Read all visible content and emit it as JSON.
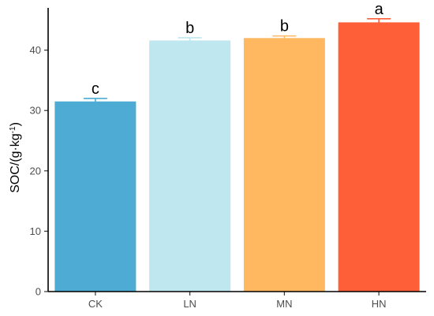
{
  "chart_data": {
    "type": "bar",
    "categories": [
      "CK",
      "LN",
      "MN",
      "HN"
    ],
    "values": [
      31.5,
      41.6,
      42.0,
      44.6
    ],
    "errors": [
      0.5,
      0.45,
      0.35,
      0.6
    ],
    "significance_labels": [
      "c",
      "b",
      "b",
      "a"
    ],
    "colors": [
      "#4DABD4",
      "#BEE7F0",
      "#FFB860",
      "#FF5F38"
    ],
    "xlabel": "",
    "ylabel": {
      "prefix": "SOC/(g·kg",
      "superscript": "-1",
      "suffix": ")"
    },
    "ylim": [
      0,
      47
    ],
    "yticks": [
      0,
      10,
      20,
      30,
      40
    ],
    "grid": false
  }
}
